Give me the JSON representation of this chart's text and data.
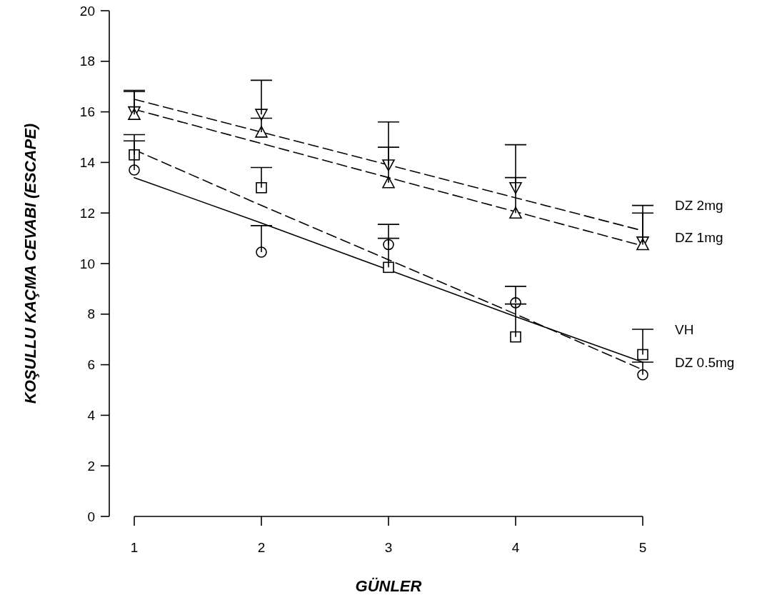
{
  "chart_data": {
    "type": "scatter",
    "xlabel": "GÜNLER",
    "ylabel": "KOŞULLU KAÇMA CEVABI (ESCAPE)",
    "x": [
      1,
      2,
      3,
      4,
      5
    ],
    "xlim": [
      1,
      5
    ],
    "xticks": [
      1,
      2,
      3,
      4,
      5
    ],
    "ylim": [
      0,
      20
    ],
    "yticks": [
      0,
      2,
      4,
      6,
      8,
      10,
      12,
      14,
      16,
      18,
      20
    ],
    "grid": false,
    "legend": "right",
    "series": [
      {
        "name": "DZ 2mg",
        "color": "#000000",
        "marker": "triangle-down",
        "values": [
          16.0,
          15.9,
          13.9,
          13.0,
          10.85
        ],
        "errors": [
          [
            16.0,
            16.85
          ],
          [
            15.9,
            17.25
          ],
          [
            13.9,
            15.6
          ],
          [
            13.0,
            14.7
          ],
          [
            10.85,
            12.3
          ]
        ]
      },
      {
        "name": "DZ 1mg",
        "color": "#000000",
        "marker": "triangle",
        "values": [
          15.9,
          15.2,
          13.2,
          12.0,
          10.75
        ],
        "errors": [
          [
            15.9,
            16.8
          ],
          [
            15.2,
            15.75
          ],
          [
            13.2,
            14.6
          ],
          [
            12.0,
            13.4
          ],
          [
            10.75,
            12.0
          ]
        ]
      },
      {
        "name": "VH",
        "color": "#000000",
        "marker": "square",
        "values": [
          14.3,
          13.0,
          9.85,
          7.1,
          6.4
        ],
        "errors": [
          [
            14.3,
            15.1
          ],
          [
            13.0,
            13.8
          ],
          [
            9.85,
            11.0
          ],
          [
            7.1,
            8.4
          ],
          [
            6.4,
            7.4
          ]
        ]
      },
      {
        "name": "DZ 0.5mg",
        "color": "#000000",
        "marker": "circle",
        "values": [
          13.7,
          10.45,
          10.75,
          8.45,
          5.6
        ],
        "errors": [
          [
            13.7,
            14.85
          ],
          [
            10.45,
            11.5
          ],
          [
            10.75,
            11.55
          ],
          [
            8.45,
            9.1
          ],
          [
            5.6,
            6.1
          ]
        ]
      },
      {
        "type": "line",
        "color": "#000000",
        "line_style": "dashed",
        "marker": "none",
        "values": [
          16.5,
          15.2,
          13.9,
          12.6,
          11.3
        ]
      },
      {
        "type": "line",
        "color": "#000000",
        "line_style": "dashed",
        "marker": "none",
        "values": [
          16.1,
          14.75,
          13.4,
          12.05,
          10.7
        ]
      },
      {
        "type": "line",
        "color": "#000000",
        "line_style": "dashed",
        "marker": "none",
        "values": [
          14.5,
          12.3,
          10.15,
          8.0,
          5.8
        ]
      },
      {
        "type": "line",
        "color": "#000000",
        "line_style": "solid",
        "marker": "none",
        "values": [
          13.4,
          11.6,
          9.75,
          7.9,
          6.1
        ]
      }
    ]
  }
}
